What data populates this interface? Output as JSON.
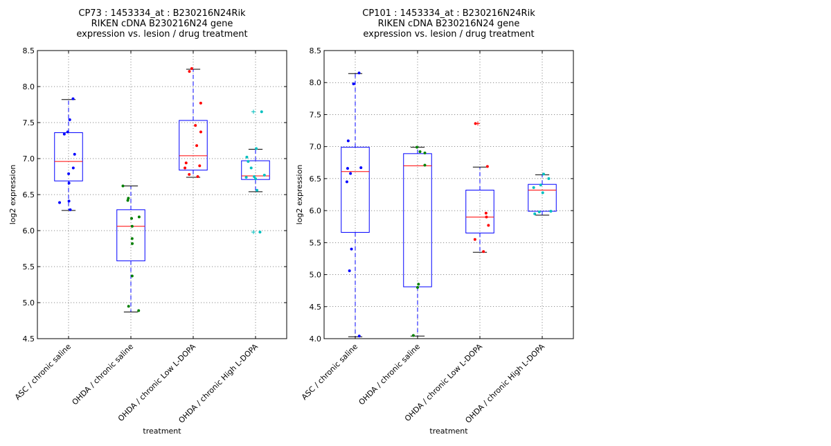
{
  "chart_data": [
    {
      "type": "box",
      "title_lines": [
        "CP73 : 1453334_at : B230216N24Rik",
        "RIKEN cDNA B230216N24 gene",
        "expression vs. lesion / drug treatment"
      ],
      "xlabel": "treatment",
      "ylabel": "log2 expression",
      "ylim": [
        4.5,
        8.5
      ],
      "yticks": [
        "4.5",
        "5.0",
        "5.5",
        "6.0",
        "6.5",
        "7.0",
        "7.5",
        "8.0",
        "8.5"
      ],
      "grid": true,
      "categories": [
        "ASC / chronic saline",
        "OHDA / chronic saline",
        "OHDA / chronic Low L-DOPA",
        "OHDA / chronic High L-DOPA"
      ],
      "colors": [
        "#0000ff",
        "#008000",
        "#ff0000",
        "#00bfbf"
      ],
      "boxes": [
        {
          "q1": 6.69,
          "median": 6.96,
          "q3": 7.36,
          "whisker_low": 6.28,
          "whisker_high": 7.82,
          "outliers": []
        },
        {
          "q1": 5.58,
          "median": 6.06,
          "q3": 6.29,
          "whisker_low": 4.87,
          "whisker_high": 6.62,
          "outliers": []
        },
        {
          "q1": 6.84,
          "median": 7.04,
          "q3": 7.53,
          "whisker_low": 6.74,
          "whisker_high": 8.24,
          "outliers": []
        },
        {
          "q1": 6.71,
          "median": 6.76,
          "q3": 6.97,
          "whisker_low": 6.54,
          "whisker_high": 7.13,
          "outliers": [
            7.65,
            5.98
          ]
        }
      ],
      "points": [
        [
          7.83,
          7.54,
          7.37,
          7.34,
          7.06,
          6.87,
          6.79,
          6.66,
          6.41,
          6.39,
          6.29
        ],
        [
          6.62,
          6.45,
          6.42,
          6.19,
          6.17,
          6.06,
          5.89,
          5.82,
          5.37,
          4.95,
          4.89
        ],
        [
          8.25,
          8.21,
          7.77,
          7.46,
          7.37,
          7.18,
          6.94,
          6.9,
          6.87,
          6.78,
          6.75
        ],
        [
          7.65,
          7.14,
          7.02,
          6.96,
          6.87,
          6.77,
          6.75,
          6.74,
          6.72,
          6.56,
          5.98
        ]
      ]
    },
    {
      "type": "box",
      "title_lines": [
        "CP101 : 1453334_at : B230216N24Rik",
        "RIKEN cDNA B230216N24 gene",
        "expression vs. lesion / drug treatment"
      ],
      "xlabel": "treatment",
      "ylabel": "log2 expression",
      "ylim": [
        4.0,
        8.5
      ],
      "yticks": [
        "4.0",
        "4.5",
        "5.0",
        "5.5",
        "6.0",
        "6.5",
        "7.0",
        "7.5",
        "8.0",
        "8.5"
      ],
      "grid": true,
      "categories": [
        "ASC / chronic saline",
        "OHDA / chronic saline",
        "OHDA / chronic Low L-DOPA",
        "OHDA / chronic High L-DOPA"
      ],
      "colors": [
        "#0000ff",
        "#008000",
        "#ff0000",
        "#00bfbf"
      ],
      "boxes": [
        {
          "q1": 5.66,
          "median": 6.61,
          "q3": 6.99,
          "whisker_low": 4.03,
          "whisker_high": 8.14,
          "outliers": []
        },
        {
          "q1": 4.81,
          "median": 6.7,
          "q3": 6.89,
          "whisker_low": 4.04,
          "whisker_high": 6.99,
          "outliers": []
        },
        {
          "q1": 5.65,
          "median": 5.9,
          "q3": 6.32,
          "whisker_low": 5.35,
          "whisker_high": 6.68,
          "outliers": [
            7.36
          ]
        },
        {
          "q1": 5.99,
          "median": 6.32,
          "q3": 6.41,
          "whisker_low": 5.93,
          "whisker_high": 6.56,
          "outliers": []
        }
      ],
      "points": [
        [
          8.15,
          7.98,
          7.09,
          6.67,
          6.66,
          6.58,
          6.45,
          5.4,
          5.06,
          4.04
        ],
        [
          6.99,
          6.92,
          6.9,
          6.71,
          4.85,
          4.8,
          4.05
        ],
        [
          7.36,
          6.69,
          5.96,
          5.9,
          5.77,
          5.55,
          5.36
        ],
        [
          6.57,
          6.5,
          6.4,
          6.36,
          6.28,
          5.99,
          5.98,
          5.95
        ]
      ]
    }
  ]
}
